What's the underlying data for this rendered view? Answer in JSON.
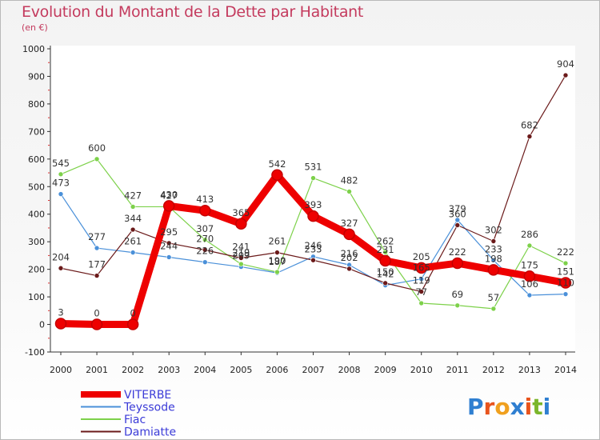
{
  "header": {
    "title": "Evolution du Montant de la Dette par Habitant",
    "subtitle": "(en €)"
  },
  "logo": {
    "letters": [
      "P",
      "r",
      "o",
      "x",
      "i",
      "t",
      "i"
    ],
    "colors": [
      "#2f7fd1",
      "#e8541d",
      "#f0a01e",
      "#2f7fd1",
      "#e8541d",
      "#7bb62b",
      "#2f7fd1"
    ]
  },
  "chart_data": {
    "type": "line",
    "title": "Evolution du Montant de la Dette par Habitant",
    "subtitle": "(en €)",
    "x": [
      "2000",
      "2001",
      "2002",
      "2003",
      "2004",
      "2005",
      "2006",
      "2007",
      "2008",
      "2009",
      "2010",
      "2011",
      "2012",
      "2013",
      "2014"
    ],
    "ylim": [
      -100,
      1000
    ],
    "yticks": [
      "-100",
      "0",
      "100",
      "200",
      "300",
      "400",
      "500",
      "600",
      "700",
      "800",
      "900",
      "1000"
    ],
    "grid": false,
    "legend_position": "bottom-left",
    "series": [
      {
        "name": "VITERBE",
        "color": "#ee0000",
        "emphasis": true,
        "values": [
          3,
          0,
          0,
          430,
          413,
          365,
          542,
          393,
          327,
          231,
          205,
          222,
          198,
          175,
          151
        ],
        "labels": [
          "3",
          "0",
          "0",
          "430",
          "413",
          "365",
          "542",
          "393",
          "327",
          "231",
          "205",
          "222",
          "198",
          "175",
          "151"
        ]
      },
      {
        "name": "Teyssode",
        "color": "#4a90d9",
        "values": [
          473,
          277,
          261,
          244,
          226,
          209,
          187,
          246,
          216,
          142,
          165,
          379,
          233,
          106,
          110
        ],
        "labels": [
          "473",
          "277",
          "261",
          "244",
          "226",
          "209",
          "187",
          "246",
          "216",
          "142",
          "165",
          "379",
          "233",
          "106",
          "110"
        ]
      },
      {
        "name": "Fiac",
        "color": "#7dd14a",
        "values": [
          545,
          600,
          427,
          427,
          307,
          219,
          190,
          531,
          482,
          262,
          77,
          69,
          57,
          286,
          222
        ],
        "labels": [
          "545",
          "600",
          "427",
          "427",
          "307",
          "219",
          "190",
          "531",
          "482",
          "262",
          "77",
          "69",
          "57",
          "286",
          "222"
        ]
      },
      {
        "name": "Damiatte",
        "color": "#6b1a1a",
        "values": [
          204,
          177,
          344,
          295,
          270,
          241,
          261,
          233,
          202,
          150,
          119,
          360,
          302,
          682,
          904
        ],
        "labels": [
          "204",
          "177",
          "344",
          "295",
          "270",
          "241",
          "261",
          "233",
          "202",
          "150",
          "119",
          "360",
          "302",
          "682",
          "904"
        ]
      }
    ]
  }
}
